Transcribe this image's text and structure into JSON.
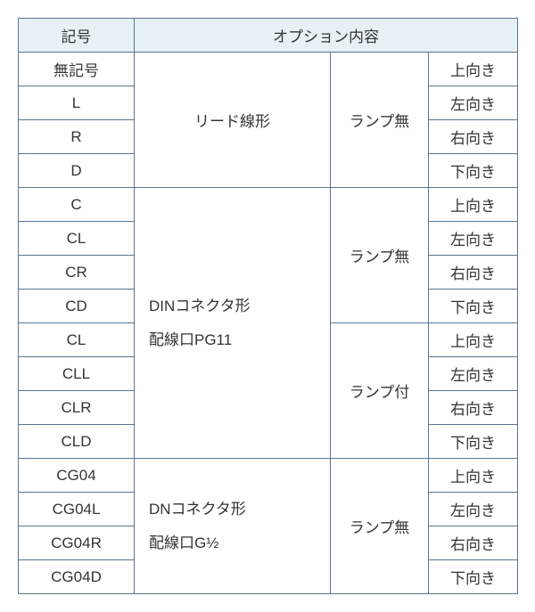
{
  "table": {
    "border_color": "#5a7590",
    "header_bg": "#e6f0f5",
    "text_color": "#333333",
    "fontsize": 17,
    "columns": {
      "code": "記号",
      "option": "オプション内容"
    },
    "groups": [
      {
        "middle": "リード線形",
        "lamp": "ランプ無",
        "rows": [
          {
            "code": "無記号",
            "dir": "上向き"
          },
          {
            "code": "L",
            "dir": "左向き"
          },
          {
            "code": "R",
            "dir": "右向き"
          },
          {
            "code": "D",
            "dir": "下向き"
          }
        ]
      },
      {
        "middle": "DINコネクタ形\n配線口PG11",
        "sub": [
          {
            "lamp": "ランプ無",
            "rows": [
              {
                "code": "C",
                "dir": "上向き"
              },
              {
                "code": "CL",
                "dir": "左向き"
              },
              {
                "code": "CR",
                "dir": "右向き"
              },
              {
                "code": "CD",
                "dir": "下向き"
              }
            ]
          },
          {
            "lamp": "ランプ付",
            "rows": [
              {
                "code": "CL",
                "dir": "上向き"
              },
              {
                "code": "CLL",
                "dir": "左向き"
              },
              {
                "code": "CLR",
                "dir": "右向き"
              },
              {
                "code": "CLD",
                "dir": "下向き"
              }
            ]
          }
        ]
      },
      {
        "middle": "DNコネクタ形\n配線口G½",
        "lamp": "ランプ無",
        "rows": [
          {
            "code": "CG04",
            "dir": "上向き"
          },
          {
            "code": "CG04L",
            "dir": "左向き"
          },
          {
            "code": "CG04R",
            "dir": "右向き"
          },
          {
            "code": "CG04D",
            "dir": "下向き"
          }
        ]
      }
    ]
  }
}
